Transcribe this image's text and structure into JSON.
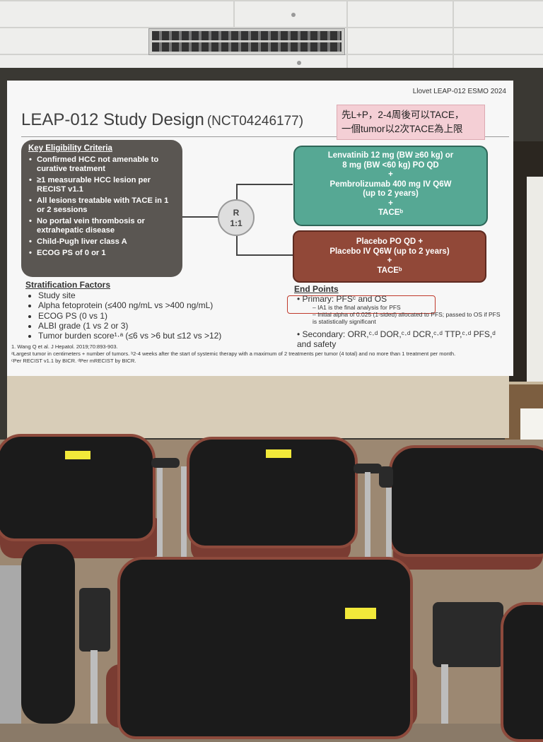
{
  "slide": {
    "top_right": "Llovet LEAP-012 ESMO 2024",
    "title": "LEAP-012 Study Design",
    "title_id": "(NCT04246177)",
    "note_line1": "先L+P，2-4周後可以TACE，",
    "note_line2": "一個tumor以2次TACE為上限",
    "eligibility": {
      "heading": "Key Eligibility Criteria",
      "items": [
        "Confirmed HCC not amenable to curative treatment",
        "≥1 measurable HCC lesion per RECIST v1.1",
        "All lesions treatable with TACE in 1 or 2 sessions",
        "No portal vein thrombosis or extrahepatic disease",
        "Child-Pugh liver class A",
        "ECOG PS of 0 or 1"
      ]
    },
    "randomization": {
      "r": "R",
      "ratio": "1:1"
    },
    "arm1": [
      "Lenvatinib 12 mg (BW ≥60 kg) or",
      "8 mg (BW <60 kg) PO QD",
      "+",
      "Pembrolizumab 400 mg IV Q6W",
      "(up to 2 years)",
      "+",
      "TACEᵇ"
    ],
    "arm2": [
      "Placebo PO QD +",
      "Placebo IV Q6W (up to 2 years)",
      "+",
      "TACEᵇ"
    ],
    "stratification": {
      "heading": "Stratification Factors",
      "items": [
        "Study site",
        "Alpha fetoprotein (≤400 ng/mL vs >400 ng/mL)",
        "ECOG PS (0 vs 1)",
        "ALBI grade (1 vs 2 or 3)",
        "Tumor burden score¹·ᵃ (≤6 vs >6 but ≤12 vs >12)"
      ]
    },
    "endpoints": {
      "heading": "End Points",
      "primary": "• Primary: PFSᶜ and OS",
      "primary_sub1": "– IA1 is the final analysis for PFS",
      "primary_sub2": "– Initial alpha of 0.025 (1-sided) allocated to PFS; passed to OS if PFS is statistically significant",
      "secondary": "• Secondary: ORR,ᶜ·ᵈ DOR,ᶜ·ᵈ DCR,ᶜ·ᵈ TTP,ᶜ·ᵈ PFS,ᵈ and safety"
    },
    "footnotes": [
      "1. Wang Q et al. J Hepatol. 2019;70:893-903.",
      "ᵃLargest tumor in centimeters + number of tumors. ᵇ2-4 weeks after the start of systemic therapy with a maximum of 2 treatments per tumor (4 total) and no more than 1 treatment per month.",
      "ᶜPer RECIST v1.1 by BICR. ᵈPer mRECIST by BICR."
    ]
  },
  "colors": {
    "arm1": "#56a894",
    "arm2": "#914838",
    "eligibility_box": "#5a5652",
    "note_box": "#f4cfd5"
  }
}
